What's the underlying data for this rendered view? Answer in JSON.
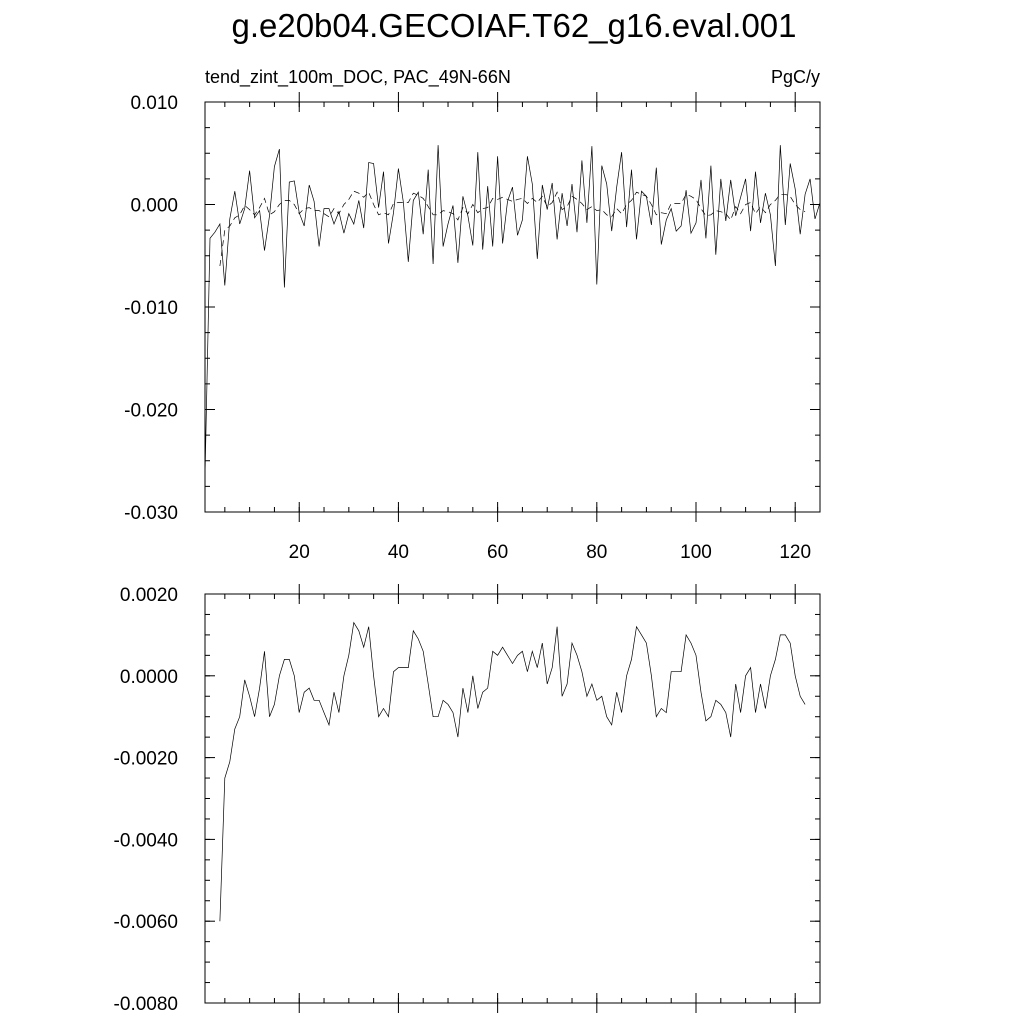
{
  "title": "g.e20b04.GECOIAF.T62_g16.eval.001",
  "chart_data": [
    {
      "type": "line",
      "left_label": "tend_zint_100m_DOC, PAC_49N-66N",
      "right_label": "PgC/y",
      "xlim": [
        1,
        125
      ],
      "ylim": [
        -0.03,
        0.01
      ],
      "x_ticks": [
        20,
        40,
        60,
        80,
        100,
        120
      ],
      "x_tick_labels": [
        "20",
        "40",
        "60",
        "80",
        "100",
        "120"
      ],
      "y_ticks": [
        0.01,
        0.0,
        -0.01,
        -0.02,
        -0.03
      ],
      "y_tick_labels": [
        "0.010",
        "0.000",
        "-0.010",
        "-0.020",
        "-0.030"
      ],
      "grid": false,
      "series": [
        {
          "style": "solid",
          "x_start": 1,
          "values": [
            -0.0265,
            -0.0033,
            -0.0027,
            -0.0019,
            -0.0079,
            -0.0014,
            0.0013,
            -0.0019,
            -0.0004,
            0.0033,
            -0.0013,
            -0.0006,
            -0.0045,
            -0.0011,
            0.0037,
            0.0054,
            -0.0081,
            0.0022,
            0.0023,
            -0.0008,
            -0.0021,
            0.0019,
            0.0003,
            -0.0041,
            -0.0004,
            -0.0004,
            -0.0019,
            -0.0007,
            -0.0028,
            -0.0009,
            -0.0019,
            0.0004,
            -0.0023,
            0.0041,
            0.004,
            -0.0003,
            0.0032,
            -0.0038,
            -0.0008,
            0.0035,
            0.0002,
            -0.0056,
            0.0004,
            0.0012,
            -0.0029,
            0.0034,
            -0.0058,
            0.0058,
            -0.0041,
            -0.0019,
            -0.0001,
            -0.0057,
            0.0008,
            -0.0011,
            -0.004,
            0.0051,
            -0.0044,
            0.0018,
            -0.0041,
            0.0047,
            -0.0038,
            0.0003,
            0.0017,
            -0.003,
            -0.0015,
            0.0047,
            0.002,
            -0.0053,
            0.0019,
            -0.0005,
            0.0021,
            -0.0034,
            0.0011,
            -0.0021,
            0.002,
            -0.0027,
            0.0043,
            -0.0018,
            0.0057,
            -0.0078,
            0.0038,
            0.002,
            -0.0026,
            0.0017,
            0.0051,
            -0.0022,
            0.0034,
            -0.0034,
            0.0013,
            0.0008,
            -0.002,
            0.0036,
            -0.0039,
            -0.0015,
            -0.0004,
            -0.0026,
            -0.0021,
            0.0014,
            -0.0028,
            -0.0018,
            0.0024,
            -0.0033,
            0.0038,
            -0.0049,
            0.0025,
            -0.0016,
            0.0024,
            -0.0011,
            0.0007,
            0.0025,
            -0.0026,
            0.0032,
            -0.0018,
            0.0011,
            -0.001,
            -0.006,
            0.0058,
            -0.002,
            0.004,
            0.0015,
            -0.0029,
            0.001,
            0.0025,
            -0.0014,
            0.0002
          ]
        },
        {
          "style": "dashed",
          "x_start": 4,
          "values": [
            -0.006,
            -0.0025,
            -0.0021,
            -0.0013,
            -0.001,
            -0.0001,
            -0.0005,
            -0.001,
            -0.0003,
            0.0006,
            -0.001,
            -0.0007,
            0.0,
            0.0004,
            0.0004,
            0.0,
            -0.0009,
            -0.0004,
            -0.0003,
            -0.0006,
            -0.0006,
            -0.0009,
            -0.0012,
            -0.0004,
            -0.0009,
            0.0,
            0.0005,
            0.0013,
            0.0011,
            0.0007,
            0.0012,
            0.0,
            -0.001,
            -0.0008,
            -0.001,
            0.0001,
            0.0002,
            0.0002,
            0.0002,
            0.0011,
            0.0009,
            0.0006,
            -0.0002,
            -0.001,
            -0.001,
            -0.0006,
            -0.0007,
            -0.0009,
            -0.0015,
            -0.0003,
            -0.0009,
            0.0,
            -0.0008,
            -0.0004,
            -0.0003,
            0.0006,
            0.0005,
            0.0007,
            0.0005,
            0.0003,
            0.0005,
            0.0006,
            0.0001,
            0.0006,
            0.0002,
            0.0008,
            -0.0002,
            0.0002,
            0.0012,
            -0.0005,
            -0.0002,
            0.0008,
            0.0005,
            0.0001,
            -0.0005,
            -0.0002,
            -0.0006,
            -0.0005,
            -0.001,
            -0.0012,
            -0.0004,
            -0.0009,
            0.0,
            0.0004,
            0.0012,
            0.001,
            0.0008,
            0.0,
            -0.001,
            -0.0008,
            -0.0009,
            0.0001,
            0.0001,
            0.0001,
            0.001,
            0.0008,
            0.0005,
            -0.0004,
            -0.0011,
            -0.001,
            -0.0006,
            -0.0007,
            -0.0009,
            -0.0015,
            -0.0002,
            -0.0009,
            0.0,
            0.0002,
            -0.0009,
            -0.0002,
            -0.0008,
            0.0,
            0.0004,
            0.001,
            0.001,
            0.0008,
            0.0,
            -0.0005,
            -0.0007
          ]
        }
      ]
    },
    {
      "type": "line",
      "xlim": [
        1,
        125
      ],
      "ylim": [
        -0.008,
        0.002
      ],
      "x_ticks": [
        20,
        40,
        60,
        80,
        100,
        120
      ],
      "x_tick_labels": [],
      "y_ticks": [
        0.002,
        0.0,
        -0.002,
        -0.004,
        -0.006,
        -0.008
      ],
      "y_tick_labels": [
        "0.0020",
        "0.0000",
        "-0.0020",
        "-0.0040",
        "-0.0060",
        "-0.0080"
      ],
      "grid": false,
      "series": [
        {
          "style": "solid",
          "x_start": 4,
          "values": [
            -0.006,
            -0.0025,
            -0.0021,
            -0.0013,
            -0.001,
            -0.0001,
            -0.0005,
            -0.001,
            -0.0003,
            0.0006,
            -0.001,
            -0.0007,
            0.0,
            0.0004,
            0.0004,
            0.0,
            -0.0009,
            -0.0004,
            -0.0003,
            -0.0006,
            -0.0006,
            -0.0009,
            -0.0012,
            -0.0004,
            -0.0009,
            0.0,
            0.0005,
            0.0013,
            0.0011,
            0.0007,
            0.0012,
            0.0,
            -0.001,
            -0.0008,
            -0.001,
            0.0001,
            0.0002,
            0.0002,
            0.0002,
            0.0011,
            0.0009,
            0.0006,
            -0.0002,
            -0.001,
            -0.001,
            -0.0006,
            -0.0007,
            -0.0009,
            -0.0015,
            -0.0003,
            -0.0009,
            0.0,
            -0.0008,
            -0.0004,
            -0.0003,
            0.0006,
            0.0005,
            0.0007,
            0.0005,
            0.0003,
            0.0005,
            0.0006,
            0.0001,
            0.0006,
            0.0002,
            0.0008,
            -0.0002,
            0.0002,
            0.0012,
            -0.0005,
            -0.0002,
            0.0008,
            0.0005,
            0.0001,
            -0.0005,
            -0.0002,
            -0.0006,
            -0.0005,
            -0.001,
            -0.0012,
            -0.0004,
            -0.0009,
            0.0,
            0.0004,
            0.0012,
            0.001,
            0.0008,
            0.0,
            -0.001,
            -0.0008,
            -0.0009,
            0.0001,
            0.0001,
            0.0001,
            0.001,
            0.0008,
            0.0005,
            -0.0004,
            -0.0011,
            -0.001,
            -0.0006,
            -0.0007,
            -0.0009,
            -0.0015,
            -0.0002,
            -0.0009,
            0.0,
            0.0002,
            -0.0009,
            -0.0002,
            -0.0008,
            0.0,
            0.0004,
            0.001,
            0.001,
            0.0008,
            0.0,
            -0.0005,
            -0.0007
          ]
        }
      ]
    }
  ]
}
